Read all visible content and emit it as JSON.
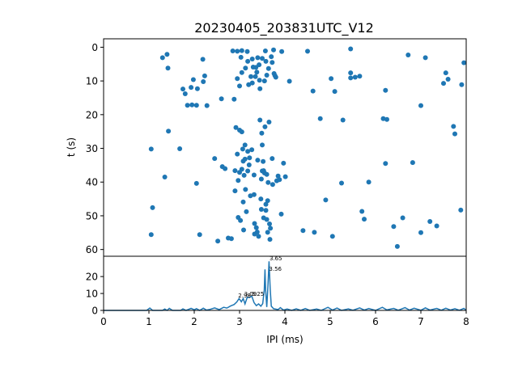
{
  "chart_data": [
    {
      "type": "scatter",
      "title": "20230405_203831UTC_V12",
      "xlabel": "",
      "ylabel": "t (s)",
      "xlim": [
        0,
        8
      ],
      "ylim": [
        62,
        -2.5
      ],
      "y_inverted": true,
      "y_ticks": [
        0,
        10,
        20,
        30,
        40,
        50,
        60
      ],
      "marker_color": "#1f77b4",
      "points": [
        [
          1.05,
          30.2
        ],
        [
          1.08,
          47.6
        ],
        [
          1.05,
          55.6
        ],
        [
          1.3,
          3.1
        ],
        [
          1.35,
          38.5
        ],
        [
          1.4,
          2.1
        ],
        [
          1.42,
          6.2
        ],
        [
          1.43,
          24.9
        ],
        [
          1.68,
          30.1
        ],
        [
          1.75,
          12.4
        ],
        [
          1.8,
          13.8
        ],
        [
          1.85,
          17.2
        ],
        [
          1.93,
          11.9
        ],
        [
          1.95,
          17.1
        ],
        [
          1.98,
          9.6
        ],
        [
          2.05,
          40.4
        ],
        [
          2.05,
          17.2
        ],
        [
          2.07,
          12.3
        ],
        [
          2.12,
          55.6
        ],
        [
          2.19,
          3.6
        ],
        [
          2.2,
          10.2
        ],
        [
          2.23,
          8.5
        ],
        [
          2.28,
          17.3
        ],
        [
          2.45,
          33.0
        ],
        [
          2.52,
          57.5
        ],
        [
          2.6,
          15.3
        ],
        [
          2.62,
          35.4
        ],
        [
          2.68,
          36.0
        ],
        [
          2.75,
          56.6
        ],
        [
          2.82,
          56.8
        ],
        [
          2.85,
          1.1
        ],
        [
          2.88,
          15.4
        ],
        [
          2.9,
          36.6
        ],
        [
          2.9,
          42.6
        ],
        [
          2.92,
          23.8
        ],
        [
          2.95,
          1.2
        ],
        [
          2.95,
          9.3
        ],
        [
          2.95,
          31.7
        ],
        [
          2.97,
          39.5
        ],
        [
          2.97,
          50.5
        ],
        [
          3.0,
          11.5
        ],
        [
          3.0,
          24.6
        ],
        [
          3.0,
          37.1
        ],
        [
          3.02,
          51.4
        ],
        [
          3.03,
          3.0
        ],
        [
          3.05,
          1.0
        ],
        [
          3.05,
          7.5
        ],
        [
          3.05,
          25.1
        ],
        [
          3.05,
          36.2
        ],
        [
          3.07,
          30.2
        ],
        [
          3.08,
          33.8
        ],
        [
          3.08,
          45.9
        ],
        [
          3.09,
          54.2
        ],
        [
          3.1,
          38.0
        ],
        [
          3.12,
          29.0
        ],
        [
          3.12,
          33.2
        ],
        [
          3.13,
          6.2
        ],
        [
          3.13,
          42.2
        ],
        [
          3.15,
          48.8
        ],
        [
          3.17,
          1.3
        ],
        [
          3.18,
          4.2
        ],
        [
          3.18,
          30.9
        ],
        [
          3.18,
          36.7
        ],
        [
          3.2,
          11.1
        ],
        [
          3.21,
          34.9
        ],
        [
          3.22,
          32.8
        ],
        [
          3.24,
          44.1
        ],
        [
          3.25,
          8.7
        ],
        [
          3.27,
          30.4
        ],
        [
          3.28,
          3.5
        ],
        [
          3.28,
          10.6
        ],
        [
          3.3,
          5.9
        ],
        [
          3.32,
          37.9
        ],
        [
          3.32,
          43.7
        ],
        [
          3.33,
          52.3
        ],
        [
          3.33,
          55.4
        ],
        [
          3.35,
          8.7
        ],
        [
          3.36,
          6.0
        ],
        [
          3.37,
          53.5
        ],
        [
          3.38,
          7.4
        ],
        [
          3.39,
          54.8
        ],
        [
          3.4,
          3.1
        ],
        [
          3.4,
          33.5
        ],
        [
          3.42,
          56.1
        ],
        [
          3.43,
          5.2
        ],
        [
          3.44,
          9.8
        ],
        [
          3.45,
          12.3
        ],
        [
          3.45,
          21.6
        ],
        [
          3.47,
          45.0
        ],
        [
          3.48,
          39.1
        ],
        [
          3.48,
          48.1
        ],
        [
          3.49,
          25.5
        ],
        [
          3.5,
          3.3
        ],
        [
          3.5,
          29.0
        ],
        [
          3.5,
          36.7
        ],
        [
          3.52,
          33.9
        ],
        [
          3.53,
          36.6
        ],
        [
          3.53,
          50.6
        ],
        [
          3.55,
          10.0
        ],
        [
          3.55,
          37.3
        ],
        [
          3.56,
          23.6
        ],
        [
          3.57,
          1.1
        ],
        [
          3.58,
          4.2
        ],
        [
          3.58,
          46.6
        ],
        [
          3.58,
          48.4
        ],
        [
          3.6,
          8.3
        ],
        [
          3.6,
          37.7
        ],
        [
          3.6,
          51.1
        ],
        [
          3.62,
          45.5
        ],
        [
          3.62,
          54.9
        ],
        [
          3.63,
          40.1
        ],
        [
          3.64,
          6.3
        ],
        [
          3.65,
          22.2
        ],
        [
          3.66,
          52.4
        ],
        [
          3.67,
          57.0
        ],
        [
          3.68,
          53.7
        ],
        [
          3.7,
          2.8
        ],
        [
          3.72,
          4.5
        ],
        [
          3.72,
          33.0
        ],
        [
          3.73,
          40.7
        ],
        [
          3.75,
          0.8
        ],
        [
          3.76,
          7.8
        ],
        [
          3.78,
          8.4
        ],
        [
          3.8,
          8.9
        ],
        [
          3.82,
          39.6
        ],
        [
          3.85,
          38.2
        ],
        [
          3.88,
          39.3
        ],
        [
          3.92,
          49.5
        ],
        [
          3.93,
          1.3
        ],
        [
          3.97,
          34.4
        ],
        [
          4.01,
          38.4
        ],
        [
          4.1,
          10.1
        ],
        [
          4.4,
          54.4
        ],
        [
          4.5,
          1.2
        ],
        [
          4.62,
          13.0
        ],
        [
          4.65,
          54.9
        ],
        [
          4.78,
          21.2
        ],
        [
          4.9,
          45.3
        ],
        [
          5.02,
          9.3
        ],
        [
          5.05,
          56.1
        ],
        [
          5.1,
          13.1
        ],
        [
          5.25,
          40.3
        ],
        [
          5.28,
          21.6
        ],
        [
          5.45,
          0.5
        ],
        [
          5.45,
          7.6
        ],
        [
          5.45,
          9.1
        ],
        [
          5.55,
          8.9
        ],
        [
          5.65,
          8.6
        ],
        [
          5.7,
          48.7
        ],
        [
          5.75,
          51.0
        ],
        [
          5.85,
          40.0
        ],
        [
          6.17,
          21.2
        ],
        [
          6.22,
          34.5
        ],
        [
          6.22,
          12.8
        ],
        [
          6.25,
          21.4
        ],
        [
          6.4,
          53.2
        ],
        [
          6.48,
          59.1
        ],
        [
          6.6,
          50.6
        ],
        [
          6.72,
          2.3
        ],
        [
          6.82,
          34.2
        ],
        [
          7.0,
          17.3
        ],
        [
          7.0,
          55.0
        ],
        [
          7.1,
          3.1
        ],
        [
          7.2,
          51.7
        ],
        [
          7.35,
          53.0
        ],
        [
          7.5,
          10.7
        ],
        [
          7.55,
          7.6
        ],
        [
          7.6,
          9.5
        ],
        [
          7.72,
          23.5
        ],
        [
          7.75,
          25.7
        ],
        [
          7.88,
          48.3
        ],
        [
          7.9,
          11.1
        ],
        [
          7.95,
          4.6
        ]
      ]
    },
    {
      "type": "line",
      "title": "",
      "xlabel": "IPI (ms)",
      "ylabel": "",
      "xlim": [
        0,
        8
      ],
      "ylim": [
        0,
        32
      ],
      "x_ticks": [
        0,
        1,
        2,
        3,
        4,
        5,
        6,
        7,
        8
      ],
      "y_ticks": [
        0,
        10,
        20
      ],
      "line_color": "#1f77b4",
      "points": [
        [
          0,
          0
        ],
        [
          0.95,
          0
        ],
        [
          1.02,
          1.4
        ],
        [
          1.08,
          0
        ],
        [
          1.3,
          0
        ],
        [
          1.35,
          0.8
        ],
        [
          1.4,
          0
        ],
        [
          1.45,
          1.2
        ],
        [
          1.52,
          0
        ],
        [
          1.7,
          0
        ],
        [
          1.75,
          0.9
        ],
        [
          1.82,
          0
        ],
        [
          1.93,
          1.2
        ],
        [
          2.0,
          0.4
        ],
        [
          2.05,
          1.0
        ],
        [
          2.12,
          0
        ],
        [
          2.2,
          1.3
        ],
        [
          2.27,
          0.2
        ],
        [
          2.35,
          0.6
        ],
        [
          2.45,
          1.5
        ],
        [
          2.55,
          0.5
        ],
        [
          2.65,
          1.8
        ],
        [
          2.72,
          1.4
        ],
        [
          2.8,
          2.6
        ],
        [
          2.88,
          3.5
        ],
        [
          2.94,
          5.0
        ],
        [
          2.99,
          7.0
        ],
        [
          3.04,
          5.1
        ],
        [
          3.08,
          7.0
        ],
        [
          3.12,
          3.8
        ],
        [
          3.17,
          7.8
        ],
        [
          3.22,
          7.6
        ],
        [
          3.27,
          8.4
        ],
        [
          3.32,
          4.6
        ],
        [
          3.37,
          2.8
        ],
        [
          3.42,
          3.8
        ],
        [
          3.47,
          2.5
        ],
        [
          3.51,
          4.0
        ],
        [
          3.545,
          12.0
        ],
        [
          3.56,
          24.2
        ],
        [
          3.575,
          12.0
        ],
        [
          3.6,
          2.0
        ],
        [
          3.625,
          14.0
        ],
        [
          3.65,
          29.0
        ],
        [
          3.675,
          13.0
        ],
        [
          3.7,
          2.5
        ],
        [
          3.75,
          1.0
        ],
        [
          3.85,
          0.5
        ],
        [
          3.9,
          1.6
        ],
        [
          3.97,
          0.2
        ],
        [
          4.05,
          0.8
        ],
        [
          4.15,
          0
        ],
        [
          4.25,
          0.9
        ],
        [
          4.35,
          0
        ],
        [
          4.45,
          1.1
        ],
        [
          4.55,
          0
        ],
        [
          4.7,
          0.8
        ],
        [
          4.8,
          0
        ],
        [
          4.95,
          1.8
        ],
        [
          5.05,
          0.2
        ],
        [
          5.15,
          1.4
        ],
        [
          5.25,
          0
        ],
        [
          5.4,
          0.9
        ],
        [
          5.5,
          0.1
        ],
        [
          5.65,
          1.5
        ],
        [
          5.75,
          0.2
        ],
        [
          5.85,
          1.1
        ],
        [
          6.0,
          0
        ],
        [
          6.15,
          1.8
        ],
        [
          6.25,
          0.3
        ],
        [
          6.4,
          1.2
        ],
        [
          6.5,
          0.1
        ],
        [
          6.65,
          1.6
        ],
        [
          6.75,
          0.2
        ],
        [
          6.85,
          1.3
        ],
        [
          7.0,
          0.1
        ],
        [
          7.1,
          1.5
        ],
        [
          7.2,
          0.2
        ],
        [
          7.35,
          1.2
        ],
        [
          7.45,
          0.1
        ],
        [
          7.55,
          1.3
        ],
        [
          7.65,
          0.2
        ],
        [
          7.75,
          1.0
        ],
        [
          7.85,
          0.1
        ],
        [
          7.95,
          1.2
        ],
        [
          8.0,
          0
        ]
      ],
      "annotations": [
        {
          "text": "2.98",
          "x": 2.97,
          "y": 7.6
        },
        {
          "text": "3.09",
          "x": 3.1,
          "y": 8.7
        },
        {
          "text": "3.25",
          "x": 3.26,
          "y": 8.7
        },
        {
          "text": "3.65",
          "x": 3.66,
          "y": 29.5
        },
        {
          "text": "3.56",
          "x": 3.65,
          "y": 23.5
        }
      ]
    }
  ]
}
